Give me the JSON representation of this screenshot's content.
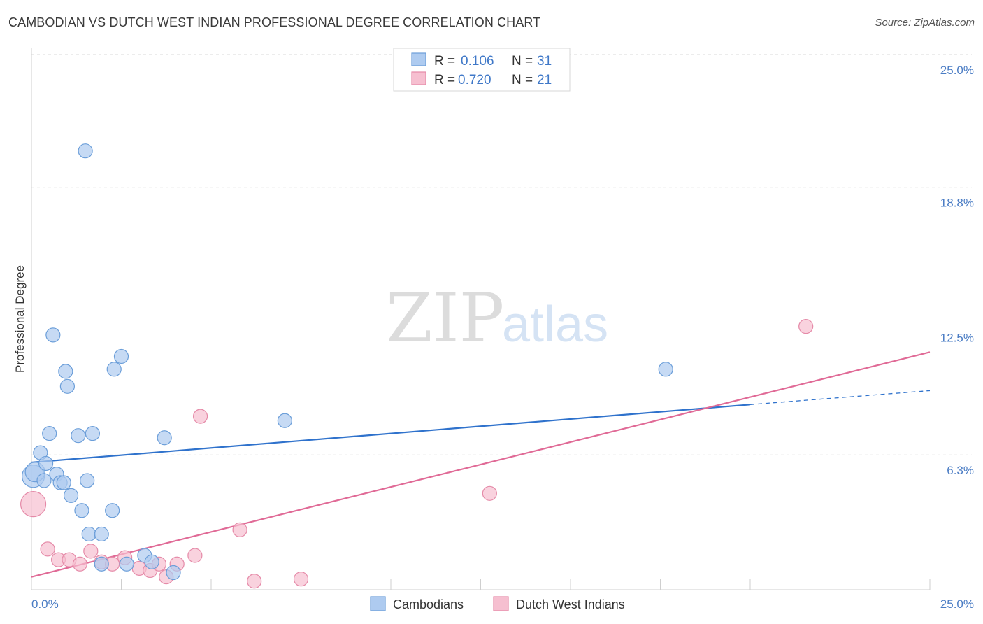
{
  "title": "CAMBODIAN VS DUTCH WEST INDIAN PROFESSIONAL DEGREE CORRELATION CHART",
  "source": "Source: ZipAtlas.com",
  "watermark": {
    "zip": "ZIP",
    "atlas": "atlas"
  },
  "colors": {
    "cambodians_fill": "#aecbf0",
    "cambodians_stroke": "#6b9ed9",
    "cambodians_line": "#2f72cc",
    "dutch_fill": "#f6bfd0",
    "dutch_stroke": "#e58aa8",
    "dutch_line": "#e06a96",
    "grid": "#d9d9d9",
    "tick_text": "#4a7cc4"
  },
  "legend": {
    "rows": [
      {
        "r_label": "R =",
        "r_value": "0.106",
        "n_label": "N =",
        "n_value": "31"
      },
      {
        "r_label": "R =",
        "r_value": "0.720",
        "n_label": "N =",
        "n_value": "21"
      }
    ]
  },
  "chart_data": {
    "type": "scatter",
    "title": "CAMBODIAN VS DUTCH WEST INDIAN PROFESSIONAL DEGREE CORRELATION CHART",
    "xlabel": "",
    "ylabel": "Professional Degree",
    "xlim": [
      0,
      25
    ],
    "ylim": [
      0,
      25
    ],
    "x_tick_labels": [
      "0.0%",
      "25.0%"
    ],
    "y_ticks": [
      6.3,
      12.5,
      18.8,
      25.0
    ],
    "y_tick_labels": [
      "6.3%",
      "12.5%",
      "18.8%",
      "25.0%"
    ],
    "grid": "horizontal dashed",
    "legend_position": "top-center",
    "series": [
      {
        "name": "Cambodians",
        "r": 0.106,
        "n": 31,
        "points": [
          [
            0.05,
            5.3,
            16
          ],
          [
            0.1,
            5.5,
            14
          ],
          [
            0.25,
            6.4,
            10
          ],
          [
            0.35,
            5.1,
            10
          ],
          [
            0.4,
            5.9,
            10
          ],
          [
            0.5,
            7.3,
            10
          ],
          [
            0.6,
            11.9,
            10
          ],
          [
            0.7,
            5.4,
            10
          ],
          [
            0.8,
            5.0,
            10
          ],
          [
            0.9,
            5.0,
            10
          ],
          [
            0.95,
            10.2,
            10
          ],
          [
            1.0,
            9.5,
            10
          ],
          [
            1.1,
            4.4,
            10
          ],
          [
            1.3,
            7.2,
            10
          ],
          [
            1.4,
            3.7,
            10
          ],
          [
            1.55,
            5.1,
            10
          ],
          [
            1.6,
            2.6,
            10
          ],
          [
            1.7,
            7.3,
            10
          ],
          [
            1.5,
            20.5,
            10
          ],
          [
            1.95,
            2.6,
            10
          ],
          [
            1.95,
            1.2,
            10
          ],
          [
            2.25,
            3.7,
            10
          ],
          [
            2.3,
            10.3,
            10
          ],
          [
            2.5,
            10.9,
            10
          ],
          [
            2.65,
            1.2,
            10
          ],
          [
            3.15,
            1.6,
            10
          ],
          [
            3.35,
            1.3,
            10
          ],
          [
            3.7,
            7.1,
            10
          ],
          [
            3.95,
            0.8,
            10
          ],
          [
            7.05,
            7.9,
            10
          ],
          [
            17.65,
            10.3,
            10
          ]
        ],
        "trend": {
          "x0": 0,
          "y0": 5.95,
          "x1": 20.0,
          "y1": 8.65,
          "dash_to_x": 25.0,
          "dash_to_y": 9.3
        }
      },
      {
        "name": "Dutch West Indians",
        "r": 0.72,
        "n": 21,
        "points": [
          [
            0.05,
            4.0,
            18
          ],
          [
            0.45,
            1.9,
            10
          ],
          [
            0.75,
            1.4,
            10
          ],
          [
            1.05,
            1.4,
            10
          ],
          [
            1.35,
            1.2,
            10
          ],
          [
            1.65,
            1.8,
            10
          ],
          [
            1.95,
            1.3,
            10
          ],
          [
            2.25,
            1.2,
            10
          ],
          [
            2.6,
            1.5,
            10
          ],
          [
            3.0,
            1.0,
            10
          ],
          [
            3.3,
            0.9,
            10
          ],
          [
            3.55,
            1.2,
            10
          ],
          [
            3.75,
            0.6,
            10
          ],
          [
            4.05,
            1.2,
            10
          ],
          [
            4.55,
            1.6,
            10
          ],
          [
            4.7,
            8.1,
            10
          ],
          [
            5.8,
            2.8,
            10
          ],
          [
            6.2,
            0.4,
            10
          ],
          [
            7.5,
            0.5,
            10
          ],
          [
            12.75,
            4.5,
            10
          ],
          [
            21.55,
            12.3,
            10
          ]
        ],
        "trend": {
          "x0": 0,
          "y0": 0.6,
          "x1": 25.0,
          "y1": 11.1
        }
      }
    ]
  },
  "bottom_legend": [
    {
      "label": "Cambodians"
    },
    {
      "label": "Dutch West Indians"
    }
  ]
}
